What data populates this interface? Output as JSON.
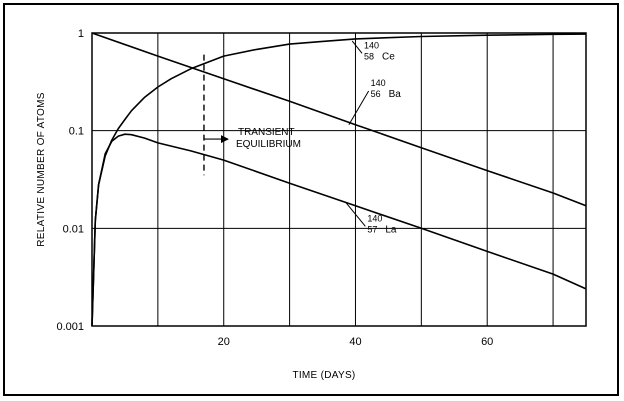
{
  "chart_data": {
    "type": "line",
    "xlabel": "TIME (DAYS)",
    "ylabel": "RELATIVE NUMBER OF ATOMS",
    "xlim": [
      0,
      75
    ],
    "ylim": [
      0.001,
      1
    ],
    "yscale": "log",
    "grid": true,
    "x_ticks": [
      20,
      40,
      60
    ],
    "x_tick_labels": [
      "20",
      "40",
      "60"
    ],
    "y_ticks": [
      0.001,
      0.01,
      0.1,
      1
    ],
    "y_tick_labels": [
      "0.001",
      "0.01",
      "0.1",
      "1"
    ],
    "series": [
      {
        "name": "140 56 Ba",
        "x": [
          0,
          10,
          20,
          30,
          40,
          50,
          60,
          70,
          75
        ],
        "y": [
          1.0,
          0.58,
          0.34,
          0.2,
          0.115,
          0.067,
          0.039,
          0.023,
          0.017
        ]
      },
      {
        "name": "140 58 Ce",
        "x": [
          0,
          0.5,
          1,
          2,
          3,
          4,
          5,
          6,
          8,
          10,
          12,
          15,
          20,
          25,
          30,
          35,
          40,
          50,
          60,
          70,
          75
        ],
        "y": [
          0.001,
          0.012,
          0.028,
          0.055,
          0.08,
          0.105,
          0.13,
          0.16,
          0.22,
          0.28,
          0.34,
          0.43,
          0.58,
          0.68,
          0.77,
          0.82,
          0.87,
          0.92,
          0.95,
          0.97,
          0.975
        ]
      },
      {
        "name": "140 57 La",
        "x": [
          0,
          0.5,
          1,
          2,
          3,
          4,
          5,
          6,
          8,
          10,
          15,
          20,
          30,
          40,
          50,
          60,
          70,
          75
        ],
        "y": [
          0.001,
          0.012,
          0.028,
          0.058,
          0.078,
          0.088,
          0.092,
          0.091,
          0.084,
          0.075,
          0.062,
          0.05,
          0.029,
          0.017,
          0.01,
          0.0058,
          0.0034,
          0.0024
        ]
      }
    ],
    "labels": {
      "ce": {
        "mass": "140",
        "z": "58",
        "symbol": "Ce"
      },
      "ba": {
        "mass": "140",
        "z": "56",
        "symbol": "Ba"
      },
      "la": {
        "mass": "140",
        "z": "57",
        "symbol": "La"
      }
    },
    "annotations": {
      "transient_line1": "TRANSIENT",
      "transient_line2": "EQUILIBRIUM",
      "transient_x": 17,
      "transient_y_range": [
        0.035,
        0.6
      ]
    }
  }
}
